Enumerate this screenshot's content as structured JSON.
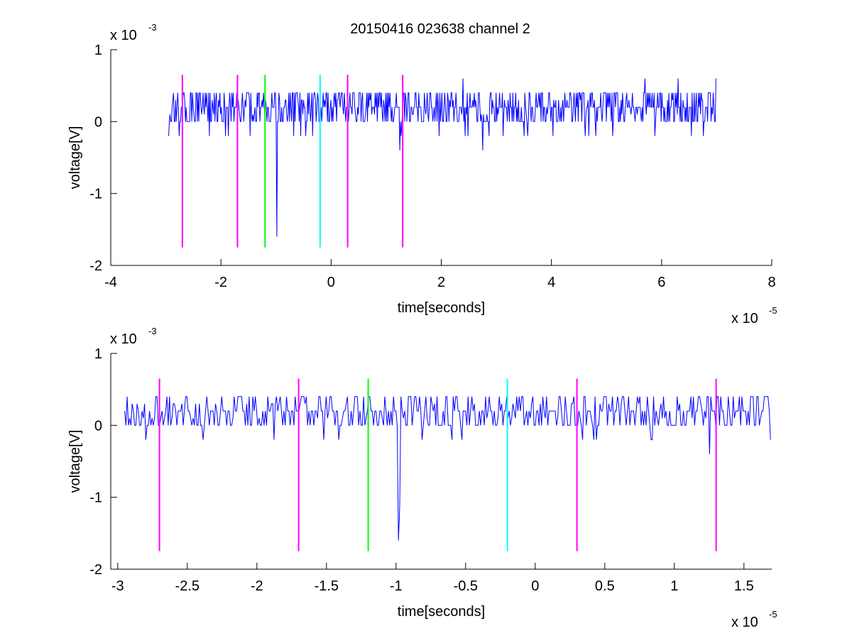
{
  "figure": {
    "title": "20150416 023638 channel 2"
  },
  "chart_data": [
    {
      "type": "line",
      "title": "20150416 023638 channel 2",
      "xlabel": "time[seconds]",
      "ylabel": "voltage[V]",
      "x_multiplier": "x 10",
      "x_exponent": "-5",
      "y_multiplier": "x 10",
      "y_exponent": "-3",
      "xlim": [
        -4,
        8
      ],
      "ylim": [
        -2,
        1
      ],
      "x_ticks": [
        -4,
        -2,
        0,
        2,
        4,
        6,
        8
      ],
      "x_tick_labels": [
        "-4",
        "-2",
        "0",
        "2",
        "4",
        "6",
        "8"
      ],
      "y_ticks": [
        -2,
        -1,
        0,
        1
      ],
      "y_tick_labels": [
        "-2",
        "-1",
        "0",
        "1"
      ],
      "grid": false,
      "series": [
        {
          "kind": "noise-trace",
          "color": "#0000ff",
          "x_range": [
            -2.95,
            7.0
          ],
          "levels": [
            0,
            0.2,
            0.4
          ],
          "excursions": [
            {
              "x": -0.98,
              "y": -1.6
            },
            {
              "x": 1.25,
              "y": -0.4
            },
            {
              "x": 2.75,
              "y": -0.4
            },
            {
              "x": 2.4,
              "y": 0.6
            },
            {
              "x": 5.7,
              "y": 0.6
            },
            {
              "x": 6.3,
              "y": 0.6
            },
            {
              "x": 7.0,
              "y": 0.6
            }
          ]
        }
      ],
      "markers": [
        {
          "x": -2.7,
          "color": "#ff00ff",
          "y0": -1.75,
          "y1": 0.65
        },
        {
          "x": -1.7,
          "color": "#ff00ff",
          "y0": -1.75,
          "y1": 0.65
        },
        {
          "x": -1.2,
          "color": "#00ff00",
          "y0": -1.75,
          "y1": 0.65
        },
        {
          "x": -0.2,
          "color": "#00ffff",
          "y0": -1.75,
          "y1": 0.65
        },
        {
          "x": 0.3,
          "color": "#ff00ff",
          "y0": -1.75,
          "y1": 0.65
        },
        {
          "x": 1.3,
          "color": "#ff00ff",
          "y0": -1.75,
          "y1": 0.65
        }
      ]
    },
    {
      "type": "line",
      "title": "",
      "xlabel": "time[seconds]",
      "ylabel": "voltage[V]",
      "x_multiplier": "x 10",
      "x_exponent": "-5",
      "y_multiplier": "x 10",
      "y_exponent": "-3",
      "xlim": [
        -3.05,
        1.7
      ],
      "ylim": [
        -2,
        1
      ],
      "x_ticks": [
        -3,
        -2.5,
        -2,
        -1.5,
        -1,
        -0.5,
        0,
        0.5,
        1,
        1.5
      ],
      "x_tick_labels": [
        "-3",
        "-2.5",
        "-2",
        "-1.5",
        "-1",
        "-0.5",
        "0",
        "0.5",
        "1",
        "1.5"
      ],
      "y_ticks": [
        -2,
        -1,
        0,
        1
      ],
      "y_tick_labels": [
        "-2",
        "-1",
        "0",
        "1"
      ],
      "grid": false,
      "series": [
        {
          "kind": "noise-trace",
          "color": "#0000ff",
          "x_range": [
            -2.95,
            1.7
          ],
          "levels": [
            0,
            0.2,
            0.4
          ],
          "excursions": [
            {
              "x": -0.98,
              "y": -1.6
            },
            {
              "x": -0.97,
              "y": -1.15
            },
            {
              "x": -2.8,
              "y": -0.2
            },
            {
              "x": 1.25,
              "y": -0.4
            }
          ]
        }
      ],
      "markers": [
        {
          "x": -2.7,
          "color": "#ff00ff",
          "y0": -1.75,
          "y1": 0.65
        },
        {
          "x": -1.7,
          "color": "#ff00ff",
          "y0": -1.75,
          "y1": 0.65
        },
        {
          "x": -1.2,
          "color": "#00ff00",
          "y0": -1.75,
          "y1": 0.65
        },
        {
          "x": -0.2,
          "color": "#00ffff",
          "y0": -1.75,
          "y1": 0.65
        },
        {
          "x": 0.3,
          "color": "#ff00ff",
          "y0": -1.75,
          "y1": 0.65
        },
        {
          "x": 1.3,
          "color": "#ff00ff",
          "y0": -1.75,
          "y1": 0.65
        }
      ]
    }
  ]
}
